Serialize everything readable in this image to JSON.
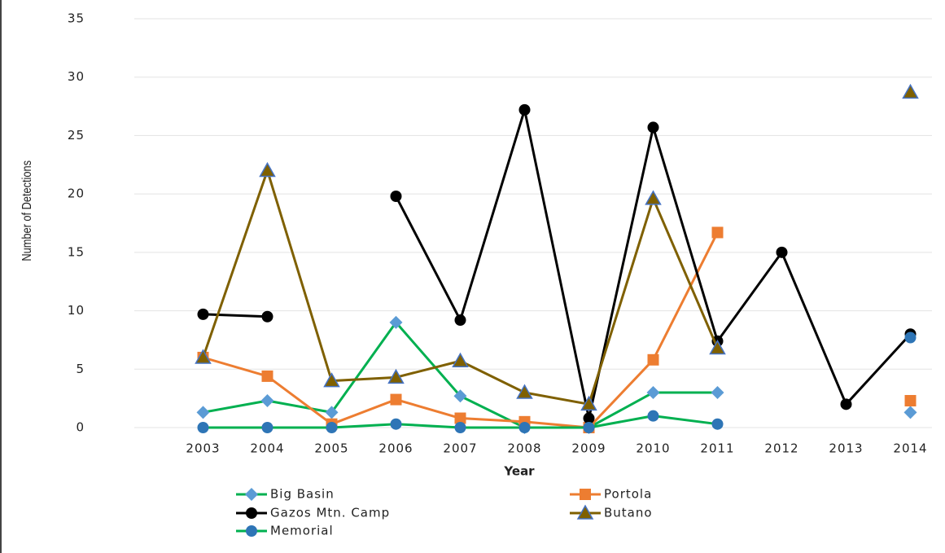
{
  "chart_data": {
    "type": "line",
    "y_label": "Number of Detections",
    "x_label": "Year",
    "categories": [
      "2003",
      "2004",
      "2005",
      "2006",
      "2007",
      "2008",
      "2009",
      "2010",
      "2011",
      "2012",
      "2013",
      "2014"
    ],
    "ylim": [
      0,
      35
    ],
    "yticks": [
      0,
      5,
      10,
      15,
      20,
      25,
      30,
      35
    ],
    "grid": true,
    "series": [
      {
        "name": "Big Basin",
        "color": "#00b050",
        "marker_color": "#5b9bd5",
        "marker": "diamond",
        "values": [
          1.3,
          2.3,
          1.3,
          9,
          2.7,
          0,
          0,
          3,
          3,
          null,
          null,
          1.3
        ]
      },
      {
        "name": "Portola",
        "color": "#ed7d31",
        "marker_color": "#ed7d31",
        "marker": "square",
        "values": [
          6,
          4.4,
          0.3,
          2.4,
          0.8,
          0.5,
          0,
          5.8,
          16.7,
          null,
          null,
          2.3
        ]
      },
      {
        "name": "Gazos Mtn. Camp",
        "color": "#000000",
        "marker_color": "#000000",
        "marker": "circle",
        "values": [
          9.7,
          9.5,
          null,
          19.8,
          9.2,
          27.2,
          0.8,
          25.7,
          7.4,
          15,
          2,
          8
        ]
      },
      {
        "name": "Butano",
        "color": "#7f6000",
        "marker_color": "#7f6000",
        "marker": "triangle",
        "values": [
          6,
          22,
          4,
          4.3,
          5.7,
          3,
          2,
          19.6,
          6.8,
          null,
          null,
          28.7
        ]
      },
      {
        "name": "Memorial",
        "color": "#00b050",
        "marker_color": "#2e75b6",
        "marker": "circle",
        "values": [
          0,
          0,
          0,
          0.3,
          0,
          0,
          0,
          1,
          0.3,
          null,
          null,
          7.7
        ]
      }
    ]
  }
}
